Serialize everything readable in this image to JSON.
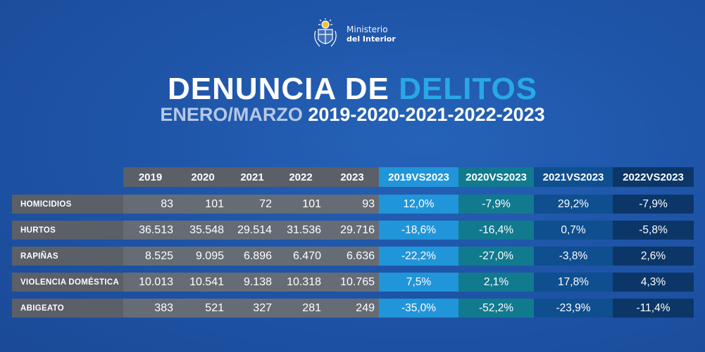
{
  "logo": {
    "line1": "Ministerio",
    "line2": "del Interior",
    "emblem_icon": "coat-of-arms-icon"
  },
  "title": {
    "main": "DENUNCIA DE",
    "accent": "DELITOS"
  },
  "subtitle": {
    "muted": "ENERO/MARZO",
    "years": "2019-2020-2021-2022-2023"
  },
  "colors": {
    "accent": "#2aa7e6",
    "col_2019vs2023": "#2195d9",
    "col_2020vs2023": "#117a8f",
    "col_2021vs2023": "#0f4f90",
    "col_2022vs2023": "#0b3667"
  },
  "table": {
    "headers": [
      "2019",
      "2020",
      "2021",
      "2022",
      "2023",
      "2019VS2023",
      "2020VS2023",
      "2021VS2023",
      "2022VS2023"
    ],
    "rows": [
      {
        "label": "HOMICIDIOS",
        "values": [
          "83",
          "101",
          "72",
          "101",
          "93"
        ],
        "changes": [
          "12,0%",
          "-7,9%",
          "29,2%",
          "-7,9%"
        ]
      },
      {
        "label": "HURTOS",
        "values": [
          "36.513",
          "35.548",
          "29.514",
          "31.536",
          "29.716"
        ],
        "changes": [
          "-18,6%",
          "-16,4%",
          "0,7%",
          "-5,8%"
        ]
      },
      {
        "label": "RAPIÑAS",
        "values": [
          "8.525",
          "9.095",
          "6.896",
          "6.470",
          "6.636"
        ],
        "changes": [
          "-22,2%",
          "-27,0%",
          "-3,8%",
          "2,6%"
        ]
      },
      {
        "label": "VIOLENCIA DOMÉSTICA",
        "values": [
          "10.013",
          "10.541",
          "9.138",
          "10.318",
          "10.765"
        ],
        "changes": [
          "7,5%",
          "2,1%",
          "17,8%",
          "4,3%"
        ]
      },
      {
        "label": "ABIGEATO",
        "values": [
          "383",
          "521",
          "327",
          "281",
          "249"
        ],
        "changes": [
          "-35,0%",
          "-52,2%",
          "-23,9%",
          "-11,4%"
        ]
      }
    ]
  }
}
